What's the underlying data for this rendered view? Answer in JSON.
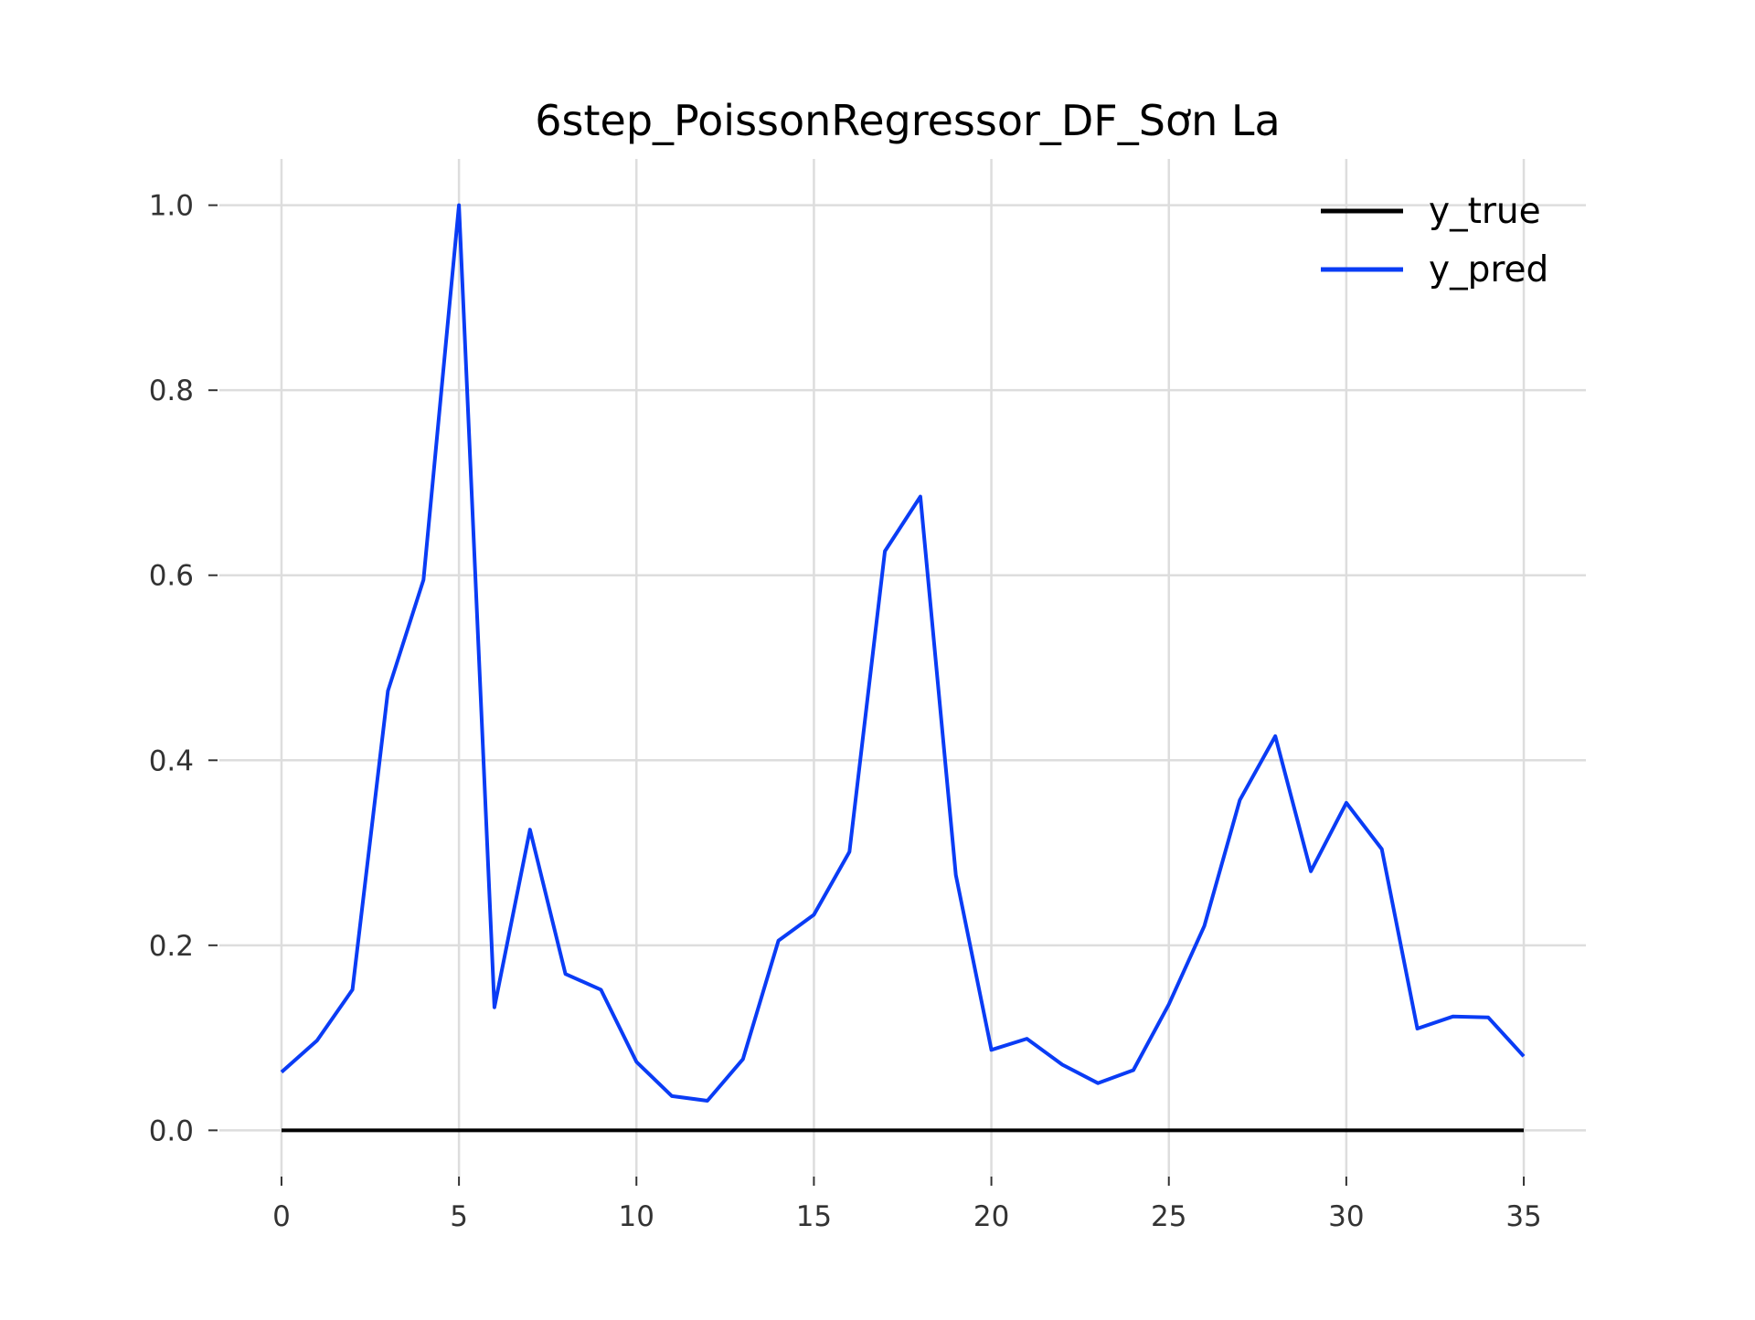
{
  "chart_data": {
    "type": "line",
    "title": "6step_PoissonRegressor_DF_Sơn La",
    "xlabel": "",
    "ylabel": "",
    "xlim": [
      -1.75,
      36.75
    ],
    "ylim": [
      -0.05,
      1.05
    ],
    "x_ticks": [
      0,
      5,
      10,
      15,
      20,
      25,
      30,
      35
    ],
    "x_tick_labels": [
      "0",
      "5",
      "10",
      "15",
      "20",
      "25",
      "30",
      "35"
    ],
    "y_ticks": [
      0.0,
      0.2,
      0.4,
      0.6,
      0.8,
      1.0
    ],
    "y_tick_labels": [
      "0.0",
      "0.2",
      "0.4",
      "0.6",
      "0.8",
      "1.0"
    ],
    "grid": true,
    "legend_position": "top-right",
    "x": [
      0,
      1,
      2,
      3,
      4,
      5,
      6,
      7,
      8,
      9,
      10,
      11,
      12,
      13,
      14,
      15,
      16,
      17,
      18,
      19,
      20,
      21,
      22,
      23,
      24,
      25,
      26,
      27,
      28,
      29,
      30,
      31,
      32,
      33,
      34,
      35
    ],
    "series": [
      {
        "name": "y_true",
        "color": "#000000",
        "values": [
          0,
          0,
          0,
          0,
          0,
          0,
          0,
          0,
          0,
          0,
          0,
          0,
          0,
          0,
          0,
          0,
          0,
          0,
          0,
          0,
          0,
          0,
          0,
          0,
          0,
          0,
          0,
          0,
          0,
          0,
          0,
          0,
          0,
          0,
          0,
          0
        ]
      },
      {
        "name": "y_pred",
        "color": "#0a3cf5",
        "values": [
          0.063,
          0.097,
          0.152,
          0.475,
          0.595,
          1.0,
          0.133,
          0.325,
          0.169,
          0.152,
          0.074,
          0.037,
          0.032,
          0.077,
          0.205,
          0.233,
          0.301,
          0.626,
          0.685,
          0.276,
          0.087,
          0.099,
          0.071,
          0.051,
          0.065,
          0.136,
          0.221,
          0.357,
          0.426,
          0.28,
          0.354,
          0.304,
          0.11,
          0.123,
          0.122,
          0.08
        ]
      }
    ]
  }
}
